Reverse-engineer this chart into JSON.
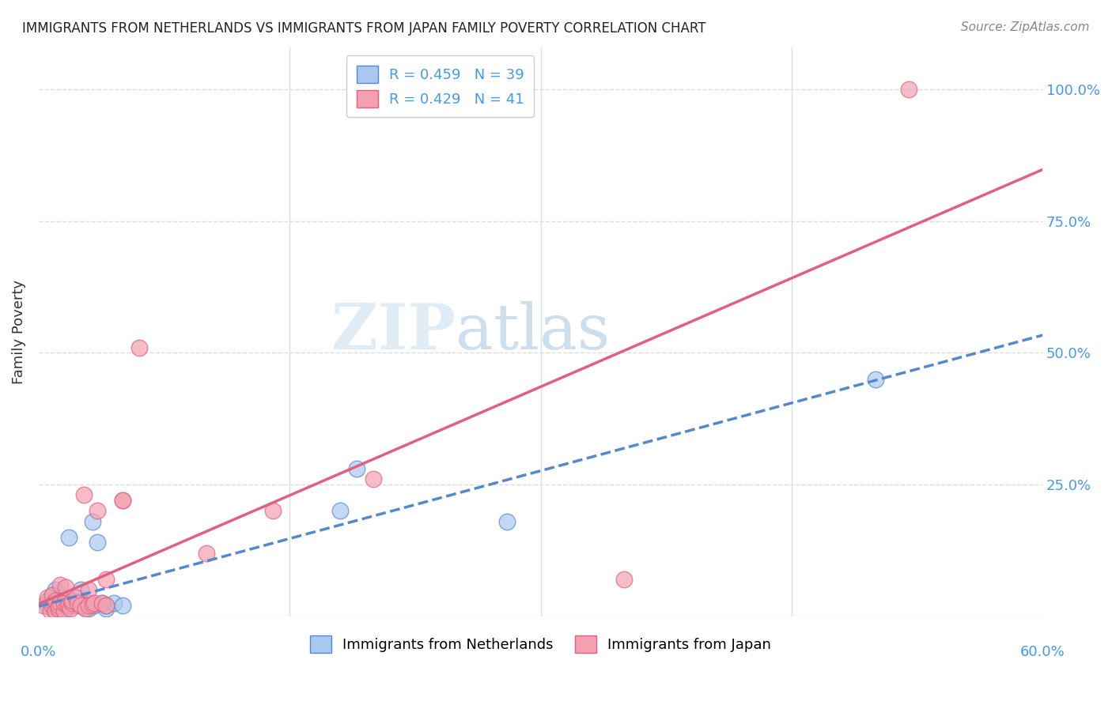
{
  "title": "IMMIGRANTS FROM NETHERLANDS VS IMMIGRANTS FROM JAPAN FAMILY POVERTY CORRELATION CHART",
  "source": "Source: ZipAtlas.com",
  "ylabel": "Family Poverty",
  "yticks": [
    0.0,
    0.25,
    0.5,
    0.75,
    1.0
  ],
  "ytick_labels": [
    "",
    "25.0%",
    "50.0%",
    "75.0%",
    "100.0%"
  ],
  "xlim": [
    0.0,
    0.6
  ],
  "ylim": [
    0.0,
    1.08
  ],
  "netherlands_R": 0.459,
  "netherlands_N": 39,
  "japan_R": 0.429,
  "japan_N": 41,
  "netherlands_color": "#a8c8f0",
  "japan_color": "#f4a0b0",
  "netherlands_line_color": "#5588cc",
  "japan_line_color": "#e06080",
  "watermark_zip": "ZIP",
  "watermark_atlas": "atlas",
  "netherlands_x": [
    0.005,
    0.005,
    0.008,
    0.008,
    0.008,
    0.009,
    0.01,
    0.01,
    0.01,
    0.01,
    0.012,
    0.012,
    0.013,
    0.013,
    0.015,
    0.015,
    0.015,
    0.017,
    0.018,
    0.02,
    0.02,
    0.022,
    0.025,
    0.025,
    0.027,
    0.03,
    0.03,
    0.032,
    0.033,
    0.035,
    0.038,
    0.04,
    0.04,
    0.045,
    0.05,
    0.18,
    0.19,
    0.28,
    0.5
  ],
  "netherlands_y": [
    0.02,
    0.03,
    0.015,
    0.025,
    0.04,
    0.02,
    0.01,
    0.02,
    0.03,
    0.05,
    0.01,
    0.02,
    0.025,
    0.035,
    0.01,
    0.015,
    0.02,
    0.025,
    0.15,
    0.02,
    0.03,
    0.02,
    0.03,
    0.05,
    0.018,
    0.015,
    0.025,
    0.18,
    0.02,
    0.14,
    0.025,
    0.015,
    0.02,
    0.025,
    0.02,
    0.2,
    0.28,
    0.18,
    0.45
  ],
  "japan_x": [
    0.003,
    0.005,
    0.007,
    0.008,
    0.008,
    0.009,
    0.01,
    0.01,
    0.012,
    0.012,
    0.013,
    0.013,
    0.015,
    0.015,
    0.016,
    0.017,
    0.018,
    0.019,
    0.02,
    0.02,
    0.022,
    0.023,
    0.025,
    0.027,
    0.028,
    0.03,
    0.03,
    0.032,
    0.033,
    0.035,
    0.038,
    0.04,
    0.04,
    0.05,
    0.05,
    0.06,
    0.1,
    0.14,
    0.2,
    0.35,
    0.52
  ],
  "japan_y": [
    0.02,
    0.035,
    0.01,
    0.02,
    0.04,
    0.025,
    0.01,
    0.03,
    0.015,
    0.02,
    0.025,
    0.06,
    0.01,
    0.025,
    0.055,
    0.02,
    0.02,
    0.015,
    0.025,
    0.03,
    0.035,
    0.025,
    0.02,
    0.23,
    0.015,
    0.02,
    0.05,
    0.022,
    0.025,
    0.2,
    0.025,
    0.02,
    0.07,
    0.22,
    0.22,
    0.51,
    0.12,
    0.2,
    0.26,
    0.07,
    1.0
  ],
  "background_color": "#ffffff",
  "grid_color": "#dddddd",
  "text_blue": "#4499ee",
  "title_color": "#222222",
  "source_color": "#888888"
}
